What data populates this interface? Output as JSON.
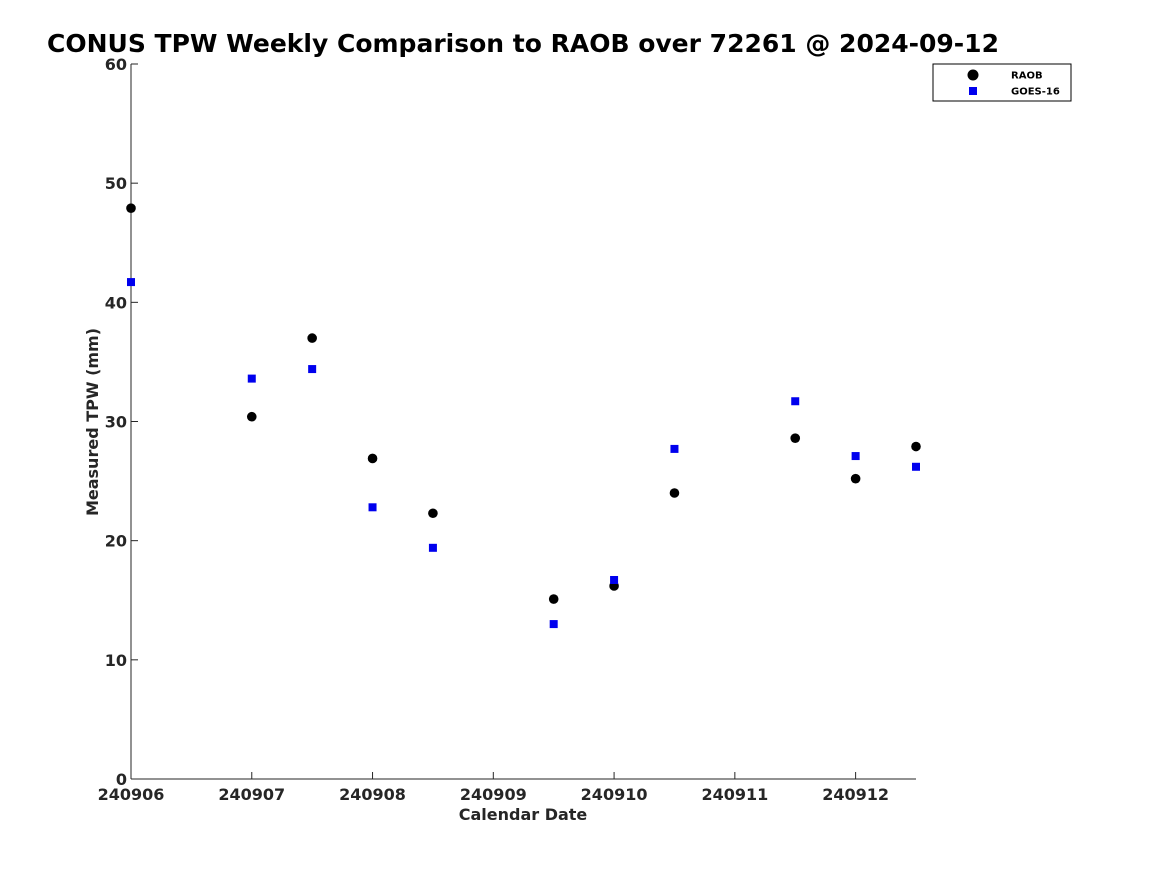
{
  "chart_data": {
    "type": "scatter",
    "title": "CONUS TPW Weekly Comparison to RAOB over 72261 @ 2024-09-12",
    "xlabel": "Calendar Date",
    "ylabel": "Measured TPW (mm)",
    "xlim": [
      240906,
      240912.5
    ],
    "ylim": [
      0,
      60
    ],
    "x_ticks": [
      "240906",
      "240907",
      "240908",
      "240909",
      "240910",
      "240911",
      "240912"
    ],
    "y_ticks": [
      "0",
      "10",
      "20",
      "30",
      "40",
      "50",
      "60"
    ],
    "grid": false,
    "legend": "top-right",
    "series": [
      {
        "name": "RAOB",
        "marker": "circle",
        "color": "#000000",
        "x": [
          240906,
          240907,
          240907.5,
          240908,
          240908.5,
          240909.5,
          240910,
          240910.5,
          240911.5,
          240912,
          240912.5
        ],
        "y": [
          47.9,
          30.4,
          37.0,
          26.9,
          22.3,
          15.1,
          16.2,
          24.0,
          28.6,
          25.2,
          27.9
        ]
      },
      {
        "name": "GOES-16",
        "marker": "square",
        "color": "#0000ee",
        "x": [
          240906,
          240907,
          240907.5,
          240908,
          240908.5,
          240909.5,
          240910,
          240910.5,
          240911.5,
          240912,
          240912.5
        ],
        "y": [
          41.7,
          33.6,
          34.4,
          22.8,
          19.4,
          13.0,
          16.7,
          27.7,
          31.7,
          27.1,
          26.2
        ]
      }
    ]
  }
}
